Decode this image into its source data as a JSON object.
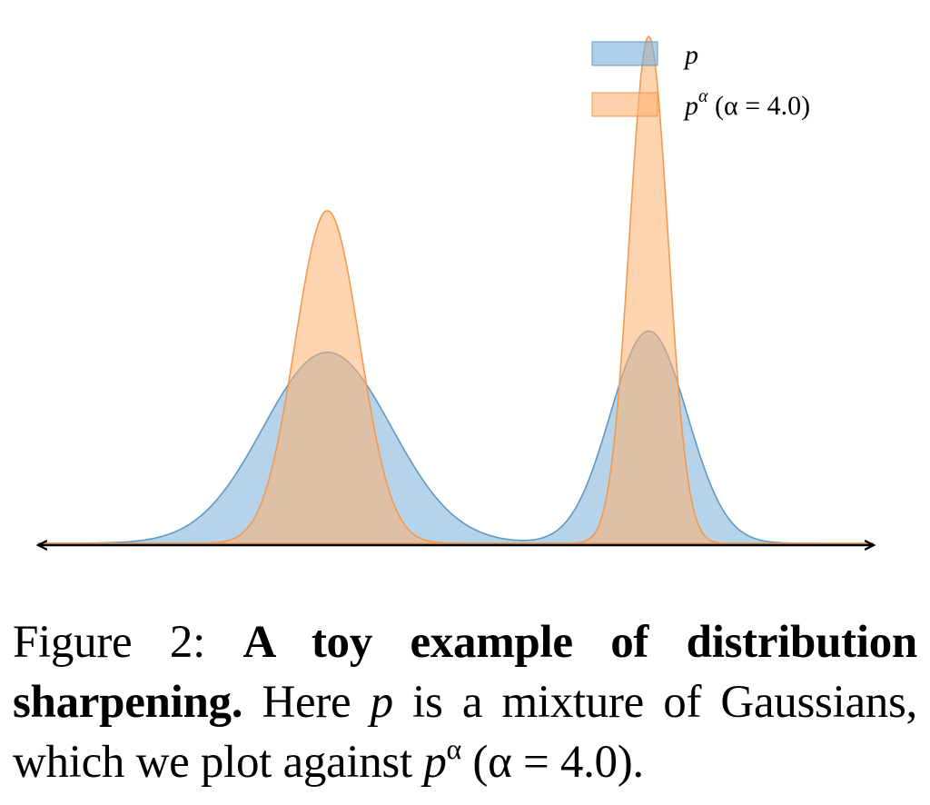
{
  "chart_data": {
    "type": "area",
    "title": "",
    "xlabel": "",
    "ylabel": "",
    "grid": false,
    "legend": "top-right",
    "axis": "double-headed horizontal arrow, no ticks",
    "mixture": {
      "components": [
        {
          "mean": 0.0,
          "std": 1.0,
          "weight": 0.6
        },
        {
          "mean": 5.0,
          "std": 0.6,
          "weight": 0.4
        }
      ]
    },
    "alpha": 4.0,
    "x_range": [
      -4.5,
      8.5
    ],
    "series": [
      {
        "name": "p",
        "label_main": "p",
        "label_sup": "",
        "label_tail": "",
        "fill": "#7bafd8",
        "stroke": "#5f99c6"
      },
      {
        "name": "p^α (α = 4.0)",
        "label_main": "p",
        "label_sup": "α",
        "label_tail": " (α = 4.0)",
        "fill": "#ffb070",
        "stroke": "#f39a4e"
      }
    ],
    "overlap_fill": "#c7a98d"
  },
  "caption": {
    "prefix": "Figure 2: ",
    "bold": "A toy example of distribution sharpening.",
    "text1": " Here ",
    "var_p": "p",
    "text2": " is a mixture of Gaussians, which we plot against ",
    "var_p2": "p",
    "sup": "α",
    "text3": " (α = 4.0)."
  }
}
